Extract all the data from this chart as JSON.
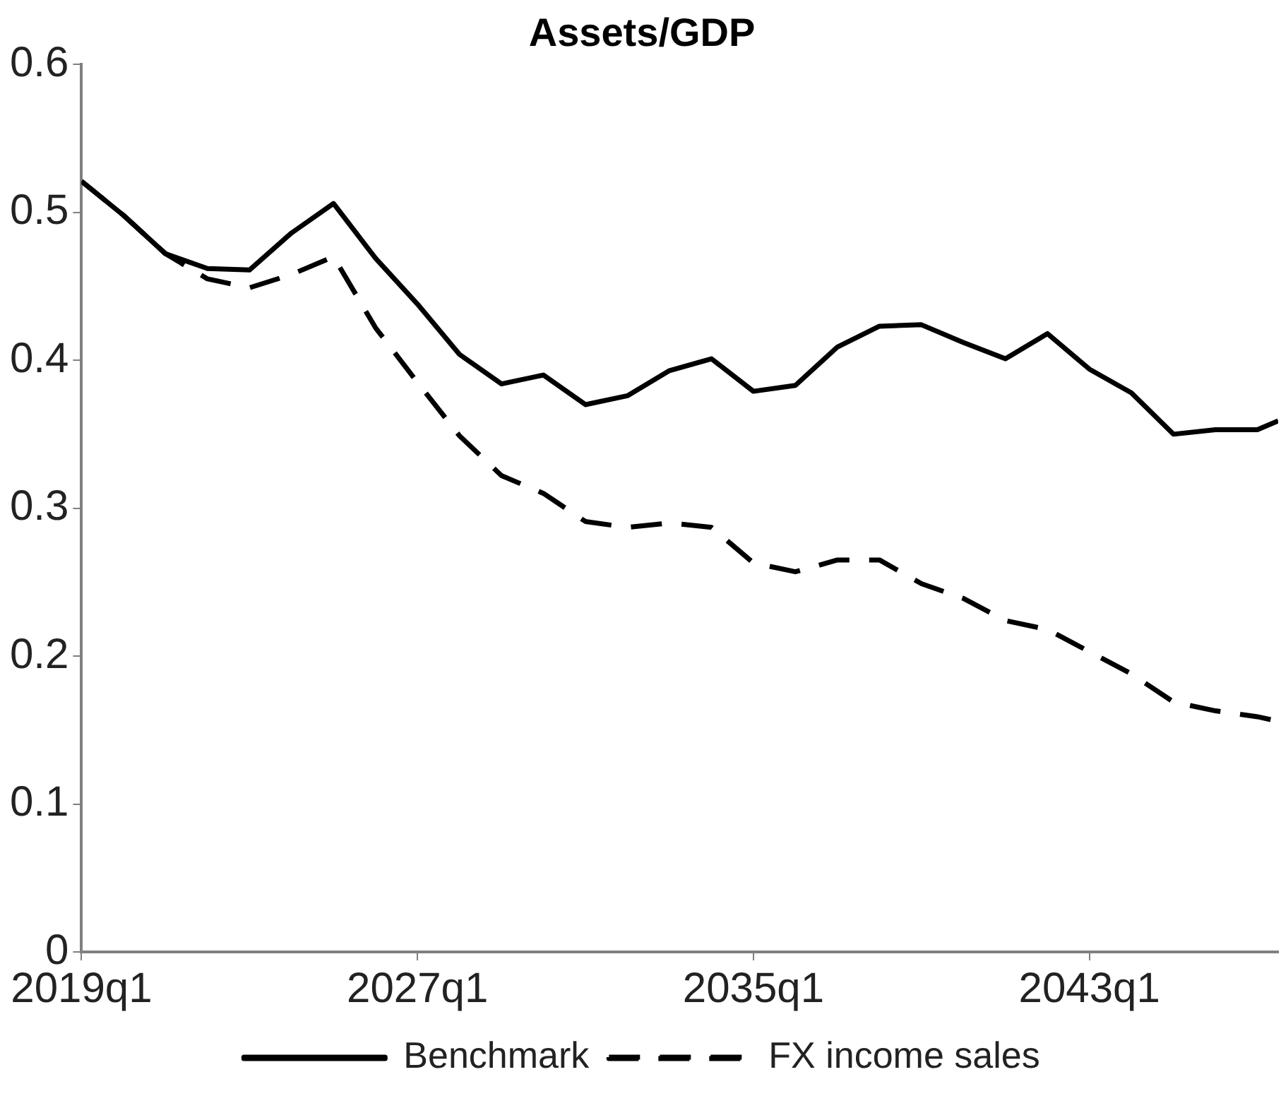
{
  "chart_data": {
    "type": "line",
    "title": "Assets/GDP",
    "x": [
      "2019-01",
      "2020-01",
      "2021-01",
      "2022-01",
      "2023-01",
      "2024-01",
      "2025-01",
      "2026-01",
      "2027-01",
      "2028-01",
      "2029-01",
      "2030-01",
      "2031-01",
      "2032-01",
      "2033-01",
      "2034-01",
      "2035-01",
      "2036-01",
      "2037-01",
      "2038-01",
      "2039-01",
      "2040-01",
      "2041-01",
      "2042-01",
      "2043-01",
      "2044-01",
      "2045-01",
      "2046-01",
      "2047-01",
      "2047-07"
    ],
    "xlim": [
      "2019-01",
      "2047-07"
    ],
    "xticks": [
      {
        "value": "2019-01",
        "label": "2019q1"
      },
      {
        "value": "2027-01",
        "label": "2027q1"
      },
      {
        "value": "2035-01",
        "label": "2035q1"
      },
      {
        "value": "2043-01",
        "label": "2043q1"
      }
    ],
    "ylim": [
      0,
      0.6
    ],
    "yticks": [
      0,
      0.1,
      0.2,
      0.3,
      0.4,
      0.5,
      0.6
    ],
    "series": [
      {
        "name": "Benchmark",
        "color": "#000000",
        "line_style": "solid",
        "values": [
          0.521,
          0.498,
          0.472,
          0.462,
          0.461,
          0.486,
          0.506,
          0.469,
          0.438,
          0.404,
          0.384,
          0.39,
          0.37,
          0.376,
          0.393,
          0.401,
          0.379,
          0.383,
          0.409,
          0.423,
          0.424,
          0.412,
          0.401,
          0.418,
          0.394,
          0.378,
          0.35,
          0.353,
          0.353,
          0.359
        ]
      },
      {
        "name": "FX income sales",
        "color": "#000000",
        "line_style": "dashed",
        "values": [
          0.521,
          0.498,
          0.472,
          0.455,
          0.449,
          0.458,
          0.47,
          0.422,
          0.385,
          0.349,
          0.322,
          0.31,
          0.291,
          0.287,
          0.29,
          0.287,
          0.263,
          0.257,
          0.265,
          0.265,
          0.249,
          0.239,
          0.224,
          0.218,
          0.203,
          0.188,
          0.169,
          0.163,
          0.159,
          0.156
        ]
      }
    ],
    "grid": false,
    "legend": "bottom"
  }
}
